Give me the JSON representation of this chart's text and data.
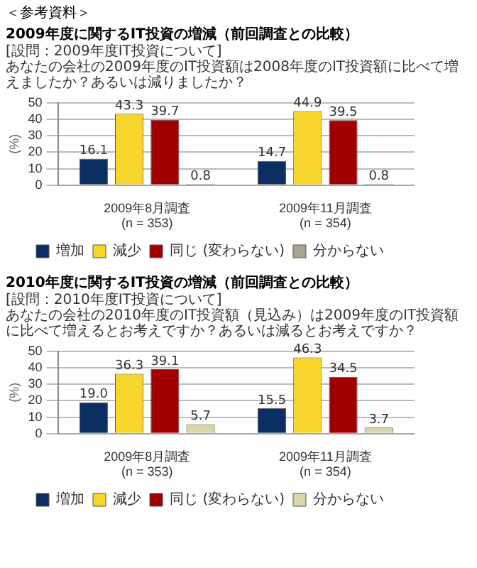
{
  "chart_data": [
    {
      "type": "bar",
      "annotations": [
        "＜参考資料＞"
      ],
      "title": "2009年度に関するIT投資の増減（前回調査との比較）",
      "subtitle": "[設問：2009年度IT投資について]\nあなたの会社の2009年度のIT投資額は2008年度のIT投資額に比べて増えましたか？あるいは減りましたか？",
      "ylabel": "(%)",
      "categories": [
        "2009年8月調査\n(n = 353)",
        "2009年11月調査\n(n = 354)"
      ],
      "series": [
        {
          "name": "増加",
          "color": "#0b2f62",
          "values": [
            16.1,
            14.7
          ],
          "value_labels": [
            "16.1",
            "14.7"
          ]
        },
        {
          "name": "減少",
          "color": "#f7d52b",
          "values": [
            43.3,
            44.9
          ],
          "value_labels": [
            "43.3",
            "44.9"
          ]
        },
        {
          "name": "同じ (変わらない)",
          "color": "#a00000",
          "values": [
            39.7,
            39.5
          ],
          "value_labels": [
            "39.7",
            "39.5"
          ]
        },
        {
          "name": "分からない",
          "color": "#a8a58c",
          "values": [
            0.8,
            0.8
          ],
          "value_labels": [
            "0.8",
            "0.8"
          ]
        }
      ],
      "ylim": [
        0,
        50
      ],
      "yticks": [
        0,
        10,
        20,
        30,
        40,
        50
      ],
      "grid": "y",
      "legend": "bottom"
    },
    {
      "type": "bar",
      "title": "2010年度に関するIT投資の増減（前回調査との比較）",
      "subtitle": "[設問：2010年度IT投資について]\nあなたの会社の2010年度のIT投資額（見込み）は2009年度のIT投資額に比べて増えるとお考えですか？あるいは減るとお考えですか？",
      "ylabel": "(%)",
      "categories": [
        "2009年8月調査\n(n = 353)",
        "2009年11月調査\n(n = 354)"
      ],
      "series": [
        {
          "name": "増加",
          "color": "#0b2f62",
          "values": [
            19,
            15.5
          ],
          "value_labels": [
            "19.0",
            "15.5"
          ]
        },
        {
          "name": "減少",
          "color": "#f7d52b",
          "values": [
            36.3,
            46.3
          ],
          "value_labels": [
            "36.3",
            "46.3"
          ]
        },
        {
          "name": "同じ (変わらない)",
          "color": "#a00000",
          "values": [
            39.1,
            34.5
          ],
          "value_labels": [
            "39.1",
            "34.5"
          ]
        },
        {
          "name": "分からない",
          "color": "#ddd5aa",
          "values": [
            5.7,
            3.7
          ],
          "value_labels": [
            "5.7",
            "3.7"
          ]
        }
      ],
      "ylim": [
        0,
        50
      ],
      "yticks": [
        0,
        10,
        20,
        30,
        40,
        50
      ],
      "grid": "y",
      "legend": "bottom"
    }
  ]
}
